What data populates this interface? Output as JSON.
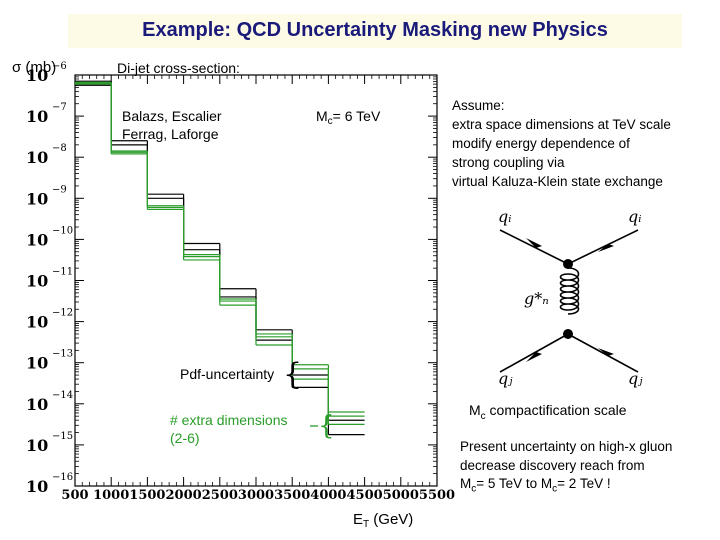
{
  "slide": {
    "title": "Example: QCD Uncertainty Masking new Physics"
  },
  "labels": {
    "sigma_unit": "σ (mb)",
    "cross_section": "Di-jet cross-section:",
    "authors_line1": "Balazs, Escalier",
    "authors_line2": "Ferrag, Laforge",
    "mc_prefix": "M",
    "mc_sub": "c",
    "mc_value": "= 6 TeV",
    "pdf_uncertainty": "Pdf-uncertainty",
    "extra_dims_line1": "# extra dimensions",
    "extra_dims_line2": "(2-6)",
    "et_prefix": "E",
    "et_sub": "T",
    "et_unit": " (GeV)"
  },
  "notes": {
    "assume": [
      "Assume:",
      "extra space dimensions at TeV scale",
      "modify energy dependence of",
      "strong coupling via",
      "virtual Kaluza-Klein state exchange"
    ],
    "mc_scale_prefix": "M",
    "mc_scale_sub": "c",
    "mc_scale_text": " compactification scale",
    "present_line1": "Present uncertainty on high-x gluon",
    "present_line2": "decrease discovery reach from",
    "present_line3_a": "M",
    "present_line3_sub1": "c",
    "present_line3_b": "= 5 TeV to M",
    "present_line3_sub2": "c",
    "present_line3_c": "= 2 TeV !"
  },
  "feynman": {
    "q_top_left": "qᵢ",
    "q_top_right": "qᵢ",
    "graviton": "g*ₙ",
    "q_bot_left": "qⱼ",
    "q_bot_right": "qⱼ"
  },
  "colors": {
    "sm": "#000000",
    "extra_dims": "#2a9d2a",
    "title": "#1a1a7a",
    "title_bg": "#fdfbe6"
  },
  "chart_data": {
    "type": "line",
    "step": true,
    "xlabel": "ET (GeV)",
    "ylabel": "σ (mb)",
    "xlim": [
      500,
      5500
    ],
    "ylim_log10": [
      -16,
      -6
    ],
    "yscale": "log",
    "x_ticks": [
      500,
      1000,
      1500,
      2000,
      2500,
      3000,
      3500,
      4000,
      4500,
      5000,
      5500
    ],
    "y_tick_exponents": [
      -6,
      -7,
      -8,
      -9,
      -10,
      -11,
      -12,
      -13,
      -14,
      -15,
      -16
    ],
    "bin_edges": [
      500,
      1000,
      1500,
      2000,
      2500,
      3000,
      3500,
      4000,
      4500
    ],
    "series": [
      {
        "values_log10": [
          -6.15,
          -7.6,
          -8.9,
          -10.1,
          -11.2,
          -12.2,
          -13.3,
          -14.4
        ]
      },
      {
        "values_log10": [
          -6.25,
          -7.7,
          -9.0,
          -10.25,
          -11.4,
          -12.45,
          -13.6,
          -14.75
        ]
      },
      {
        "values_log10": [
          -6.22,
          -7.92,
          -9.27,
          -10.5,
          -11.6,
          -12.57,
          -13.4,
          -14.5
        ]
      },
      {
        "values_log10": [
          -6.2,
          -7.88,
          -9.22,
          -10.42,
          -11.5,
          -12.37,
          -13.15,
          -14.3
        ]
      },
      {
        "values_log10": [
          -6.18,
          -7.85,
          -9.18,
          -10.37,
          -11.45,
          -12.3,
          -13.05,
          -14.2
        ]
      }
    ],
    "pdf_band_at_x": 3700,
    "extra_dims_band_at_x": 4200
  }
}
